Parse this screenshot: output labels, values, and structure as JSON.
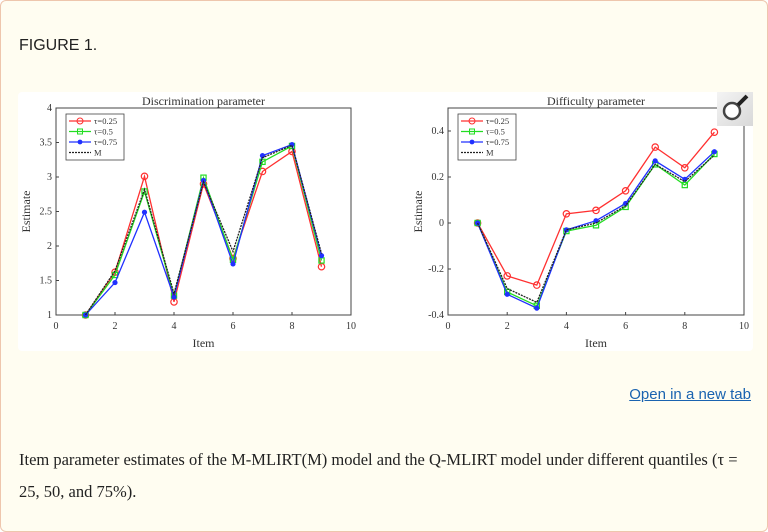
{
  "figure_label": "FIGURE 1.",
  "open_link": "Open in a new tab",
  "caption": "Item parameter estimates of the M-MLIRT(M) model and the Q-MLIRT model under different quantiles (τ = 25, 50, and 75%).",
  "magnifier_icon": "zoom-magnifier-icon",
  "colors": {
    "tau025": "#ff3030",
    "tau05": "#22dd22",
    "tau075": "#2030ff",
    "M": "#222222"
  },
  "chart_data": [
    {
      "type": "line",
      "title": "Discrimination parameter",
      "xlabel": "Item",
      "ylabel": "Estimate",
      "xlim": [
        0,
        10
      ],
      "ylim": [
        1,
        4
      ],
      "xticks": [
        0,
        2,
        4,
        6,
        8,
        10
      ],
      "yticks": [
        1,
        1.5,
        2,
        2.5,
        3,
        3.5,
        4
      ],
      "legend_placement": "top-left",
      "x": [
        1,
        2,
        3,
        4,
        5,
        6,
        7,
        8,
        9
      ],
      "series": [
        {
          "name": "τ=0.25",
          "marker": "circle",
          "color": "#ff3030",
          "values": [
            1.0,
            1.62,
            3.01,
            1.19,
            2.9,
            1.82,
            3.08,
            3.37,
            1.7
          ]
        },
        {
          "name": "τ=0.5",
          "marker": "square",
          "color": "#22dd22",
          "values": [
            1.0,
            1.58,
            2.79,
            1.28,
            2.99,
            1.8,
            3.22,
            3.45,
            1.79
          ]
        },
        {
          "name": "τ=0.75",
          "marker": "dot",
          "color": "#2030ff",
          "values": [
            1.0,
            1.47,
            2.49,
            1.26,
            2.95,
            1.74,
            3.31,
            3.47,
            1.86
          ]
        },
        {
          "name": "M",
          "marker": "none",
          "dash": true,
          "color": "#222222",
          "values": [
            1.0,
            1.64,
            2.82,
            1.31,
            2.93,
            1.92,
            3.28,
            3.46,
            1.89
          ]
        }
      ]
    },
    {
      "type": "line",
      "title": "Difficulty parameter",
      "xlabel": "Item",
      "ylabel": "Estimate",
      "xlim": [
        0,
        10
      ],
      "ylim": [
        -0.4,
        0.5
      ],
      "xticks": [
        0,
        2,
        4,
        6,
        8,
        10
      ],
      "yticks": [
        -0.4,
        -0.2,
        0,
        0.2,
        0.4
      ],
      "legend_placement": "top-left",
      "x": [
        1,
        2,
        3,
        4,
        5,
        6,
        7,
        8,
        9
      ],
      "series": [
        {
          "name": "τ=0.25",
          "marker": "circle",
          "color": "#ff3030",
          "values": [
            0,
            -0.23,
            -0.27,
            0.04,
            0.055,
            0.14,
            0.33,
            0.24,
            0.395
          ]
        },
        {
          "name": "τ=0.5",
          "marker": "square",
          "color": "#22dd22",
          "values": [
            0,
            -0.3,
            -0.36,
            -0.035,
            -0.01,
            0.07,
            0.255,
            0.165,
            0.3
          ]
        },
        {
          "name": "τ=0.75",
          "marker": "dot",
          "color": "#2030ff",
          "values": [
            0,
            -0.31,
            -0.37,
            -0.03,
            0.01,
            0.085,
            0.27,
            0.19,
            0.31
          ]
        },
        {
          "name": "M",
          "marker": "none",
          "dash": true,
          "color": "#222222",
          "values": [
            0,
            -0.285,
            -0.345,
            -0.03,
            0.0,
            0.075,
            0.255,
            0.18,
            0.295
          ]
        }
      ]
    }
  ]
}
